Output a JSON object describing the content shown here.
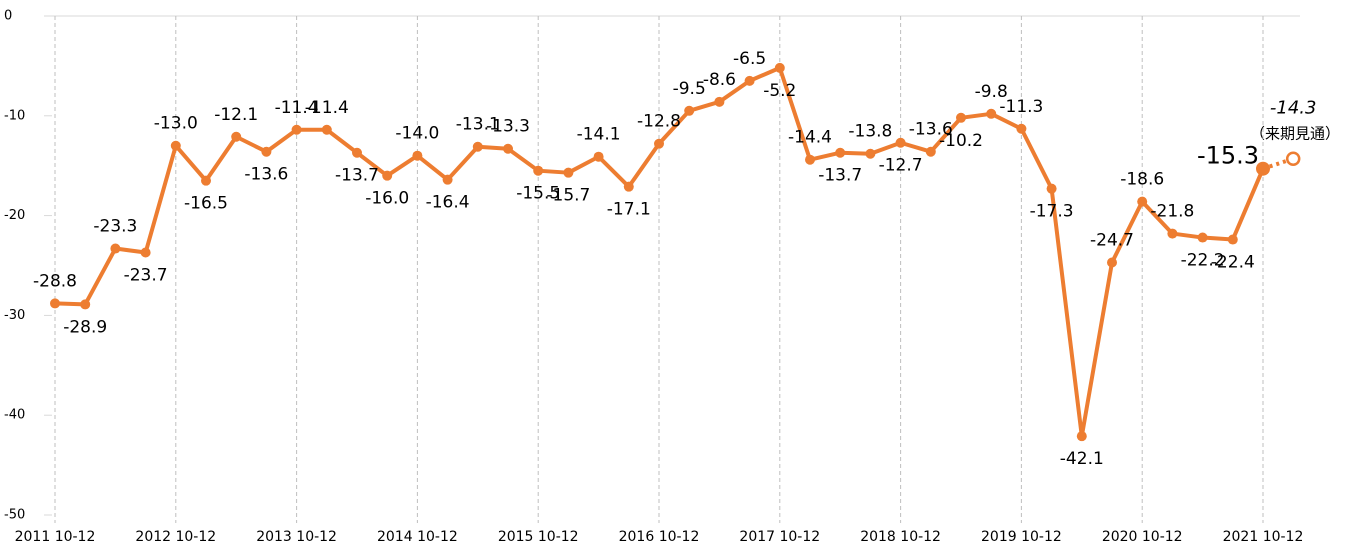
{
  "chart_data": {
    "type": "line",
    "categories": [
      "2011 10-12",
      null,
      null,
      null,
      "2012 10-12",
      null,
      null,
      null,
      "2013 10-12",
      null,
      null,
      null,
      "2014 10-12",
      null,
      null,
      null,
      "2015 10-12",
      null,
      null,
      null,
      "2016 10-12",
      null,
      null,
      null,
      "2017 10-12",
      null,
      null,
      null,
      "2018 10-12",
      null,
      null,
      null,
      "2019 10-12",
      null,
      null,
      null,
      "2020 10-12",
      null,
      null,
      null,
      "2021 10-12",
      null
    ],
    "series": [
      {
        "name": null,
        "color": "#ED7D31",
        "values": [
          -28.8,
          -28.9,
          -23.3,
          -23.7,
          -13.0,
          -16.5,
          -12.1,
          -13.6,
          -11.4,
          -11.4,
          -13.7,
          -16.0,
          -14.0,
          -16.4,
          -13.1,
          -13.3,
          -15.5,
          -15.7,
          -14.1,
          -17.1,
          -12.8,
          -9.5,
          -8.6,
          -6.5,
          -5.2,
          -14.4,
          -13.7,
          -13.8,
          -12.7,
          -13.6,
          -10.2,
          -9.8,
          -11.3,
          -17.3,
          -42.1,
          -24.7,
          -18.6,
          -21.8,
          -22.2,
          -22.4,
          -15.3,
          -14.3
        ],
        "value_labels": [
          "-28.8",
          "-28.9",
          "-23.3",
          "-23.7",
          "-13.0",
          "-16.5",
          "-12.1",
          "-13.6",
          "-11.4",
          "-11.4",
          "-13.7",
          "-16.0",
          "-14.0",
          "-16.4",
          "-13.1",
          "-13.3",
          "-15.5",
          "-15.7",
          "-14.1",
          "-17.1",
          "-12.8",
          "-9.5",
          "-8.6",
          "-6.5",
          "-5.2",
          "-14.4",
          "-13.7",
          "-13.8",
          "-12.7",
          "-13.6",
          "-10.2",
          "-9.8",
          "-11.3",
          "-17.3",
          "-42.1",
          "-24.7",
          "-18.6",
          "-21.8",
          "-22.2",
          "-22.4",
          "-15.3",
          "-14.3"
        ]
      }
    ],
    "annotations": [
      "（来期見通）"
    ],
    "ylim": [
      -50,
      0
    ],
    "yticks": [
      0,
      -10,
      -20,
      -30,
      -40,
      -50
    ]
  }
}
